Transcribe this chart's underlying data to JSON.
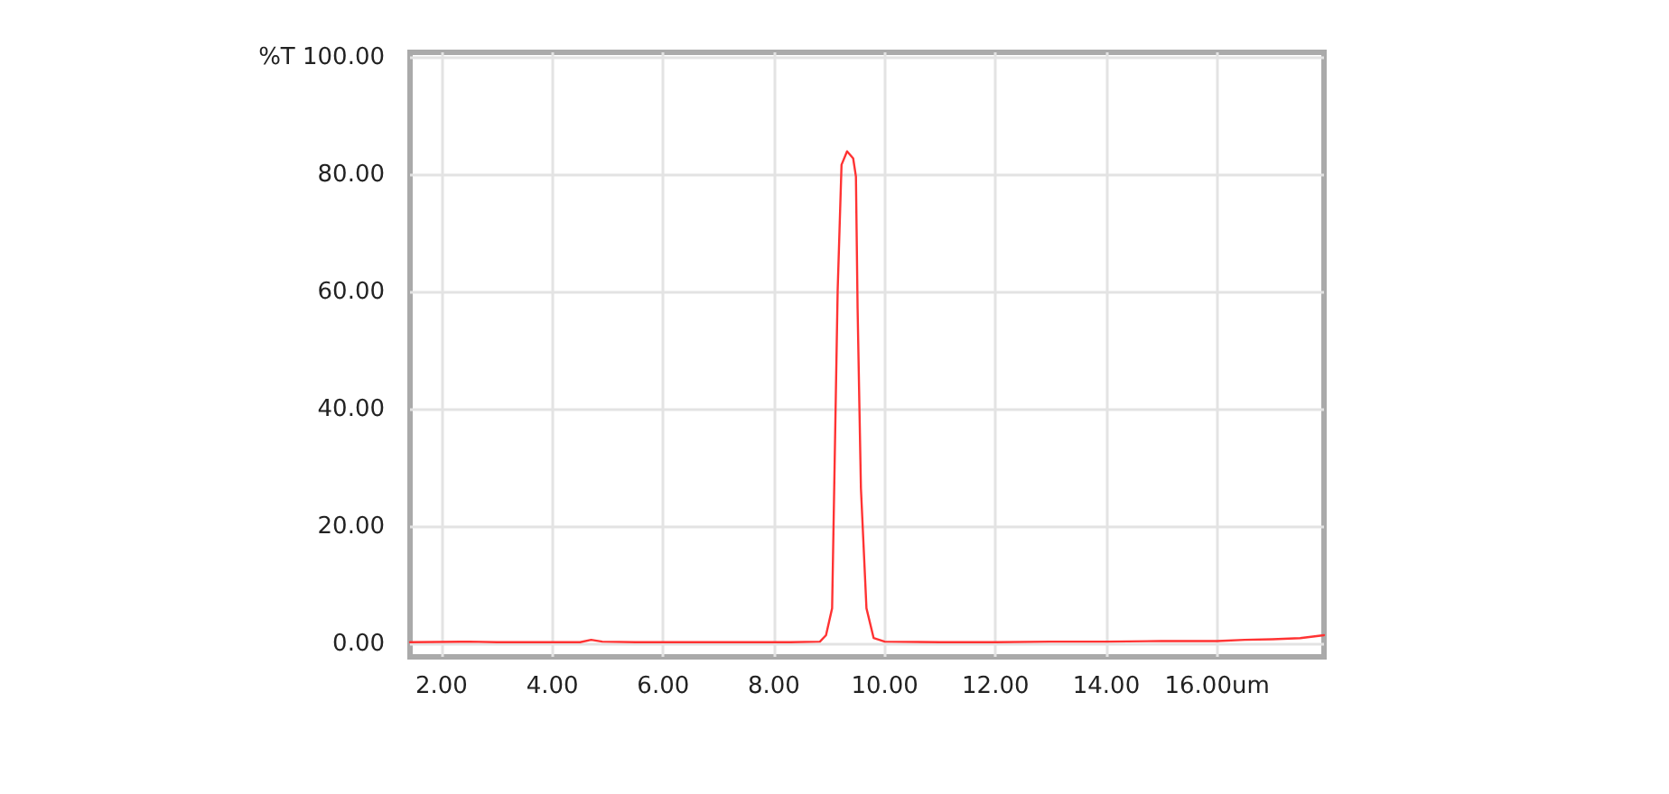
{
  "chart_data": {
    "type": "line",
    "x": [
      1.43,
      2.5,
      3.0,
      3.5,
      4.0,
      4.5,
      4.7,
      4.9,
      5.5,
      6.5,
      7.5,
      8.3,
      8.83,
      8.94,
      9.05,
      9.15,
      9.22,
      9.32,
      9.43,
      9.48,
      9.51,
      9.57,
      9.67,
      9.8,
      10.0,
      11.0,
      12.0,
      13.0,
      14.0,
      15.0,
      16.0,
      16.5,
      17.0,
      17.5,
      17.93
    ],
    "series": [
      {
        "color": "#ff3333",
        "values": [
          0.3,
          0.4,
          0.3,
          0.3,
          0.3,
          0.3,
          0.7,
          0.4,
          0.3,
          0.3,
          0.3,
          0.3,
          0.4,
          1.5,
          6.1,
          60.3,
          81.8,
          84.1,
          82.9,
          79.8,
          57.3,
          26.6,
          6.1,
          1.0,
          0.4,
          0.3,
          0.3,
          0.4,
          0.4,
          0.5,
          0.5,
          0.7,
          0.8,
          1.0,
          1.5
        ]
      }
    ],
    "xlim": [
      1.43,
      17.93
    ],
    "xticks": [
      {
        "value": 2,
        "label": "2.00"
      },
      {
        "value": 4,
        "label": "4.00"
      },
      {
        "value": 6,
        "label": "6.00"
      },
      {
        "value": 8,
        "label": "8.00"
      },
      {
        "value": 10,
        "label": "10.00"
      },
      {
        "value": 12,
        "label": "12.00"
      },
      {
        "value": 14,
        "label": "14.00"
      },
      {
        "value": 16,
        "label": "16.00um"
      }
    ],
    "ylim": [
      -2.2,
      101
    ],
    "yticks": [
      {
        "value": 0,
        "label": "0.00"
      },
      {
        "value": 20,
        "label": "20.00"
      },
      {
        "value": 40,
        "label": "40.00"
      },
      {
        "value": 60,
        "label": "60.00"
      },
      {
        "value": 80,
        "label": "80.00"
      },
      {
        "value": 100,
        "label": "%T 100.00"
      }
    ],
    "grid": true,
    "marker": "none",
    "line_style": "solid"
  }
}
